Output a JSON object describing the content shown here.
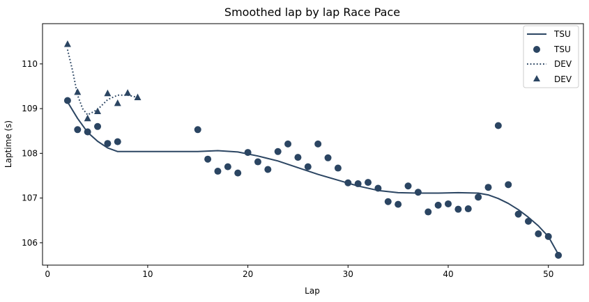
{
  "chart_data": {
    "type": "line",
    "title": "Smoothed lap by lap Race Pace",
    "xlabel": "Lap",
    "ylabel": "Laptime (s)",
    "xlim": [
      -0.5,
      53.5
    ],
    "ylim": [
      105.5,
      110.9
    ],
    "xticks": [
      0,
      10,
      20,
      30,
      40,
      50
    ],
    "yticks": [
      106,
      107,
      108,
      109,
      110
    ],
    "color": "#2b4562",
    "legend_position": "top-right",
    "legend": [
      "TSU",
      "TSU",
      "DEV",
      "DEV"
    ],
    "series": [
      {
        "name": "TSU",
        "kind": "line",
        "style": "solid",
        "points": [
          [
            2,
            109.15
          ],
          [
            3,
            108.78
          ],
          [
            4,
            108.47
          ],
          [
            5,
            108.27
          ],
          [
            6,
            108.12
          ],
          [
            7,
            108.04
          ],
          [
            10,
            108.04
          ],
          [
            15,
            108.04
          ],
          [
            17,
            108.06
          ],
          [
            19,
            108.03
          ],
          [
            21,
            107.94
          ],
          [
            23,
            107.83
          ],
          [
            25,
            107.68
          ],
          [
            27,
            107.53
          ],
          [
            29,
            107.4
          ],
          [
            31,
            107.27
          ],
          [
            33,
            107.17
          ],
          [
            35,
            107.12
          ],
          [
            37,
            107.11
          ],
          [
            39,
            107.11
          ],
          [
            41,
            107.12
          ],
          [
            43,
            107.11
          ],
          [
            44,
            107.07
          ],
          [
            45,
            106.99
          ],
          [
            46,
            106.88
          ],
          [
            47,
            106.74
          ],
          [
            48,
            106.57
          ],
          [
            49,
            106.38
          ],
          [
            50,
            106.14
          ],
          [
            51,
            105.74
          ]
        ]
      },
      {
        "name": "TSU",
        "kind": "scatter",
        "marker": "circle",
        "points": [
          [
            2,
            109.18
          ],
          [
            3,
            108.53
          ],
          [
            4,
            108.48
          ],
          [
            5,
            108.6
          ],
          [
            6,
            108.22
          ],
          [
            7,
            108.26
          ],
          [
            15,
            108.53
          ],
          [
            16,
            107.87
          ],
          [
            17,
            107.6
          ],
          [
            18,
            107.7
          ],
          [
            19,
            107.56
          ],
          [
            20,
            108.02
          ],
          [
            21,
            107.81
          ],
          [
            22,
            107.64
          ],
          [
            23,
            108.04
          ],
          [
            24,
            108.21
          ],
          [
            25,
            107.91
          ],
          [
            26,
            107.7
          ],
          [
            27,
            108.21
          ],
          [
            28,
            107.9
          ],
          [
            29,
            107.67
          ],
          [
            30,
            107.34
          ],
          [
            31,
            107.32
          ],
          [
            32,
            107.35
          ],
          [
            33,
            107.22
          ],
          [
            34,
            106.92
          ],
          [
            35,
            106.86
          ],
          [
            36,
            107.27
          ],
          [
            37,
            107.13
          ],
          [
            38,
            106.69
          ],
          [
            39,
            106.84
          ],
          [
            40,
            106.87
          ],
          [
            41,
            106.75
          ],
          [
            42,
            106.76
          ],
          [
            43,
            107.02
          ],
          [
            44,
            107.24
          ],
          [
            45,
            108.62
          ],
          [
            46,
            107.3
          ],
          [
            47,
            106.64
          ],
          [
            48,
            106.48
          ],
          [
            49,
            106.2
          ],
          [
            50,
            106.14
          ],
          [
            51,
            105.72
          ]
        ]
      },
      {
        "name": "DEV",
        "kind": "line",
        "style": "dotted",
        "points": [
          [
            2,
            110.32
          ],
          [
            2.5,
            109.85
          ],
          [
            3,
            109.3
          ],
          [
            3.5,
            109.0
          ],
          [
            4,
            108.86
          ],
          [
            5,
            108.98
          ],
          [
            6,
            109.2
          ],
          [
            7,
            109.3
          ],
          [
            8,
            109.3
          ],
          [
            9,
            109.25
          ]
        ]
      },
      {
        "name": "DEV",
        "kind": "scatter",
        "marker": "triangle",
        "points": [
          [
            2,
            110.44
          ],
          [
            3,
            109.37
          ],
          [
            4,
            108.78
          ],
          [
            5,
            108.94
          ],
          [
            6,
            109.34
          ],
          [
            7,
            109.12
          ],
          [
            8,
            109.35
          ],
          [
            9,
            109.25
          ]
        ]
      }
    ]
  }
}
